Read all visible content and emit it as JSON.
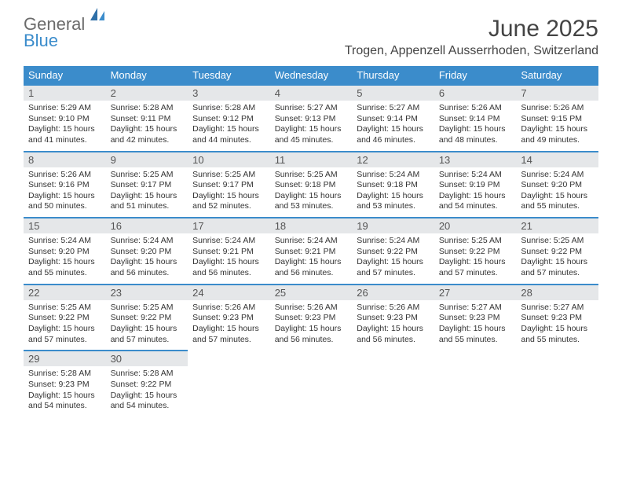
{
  "logo": {
    "word1": "General",
    "word2": "Blue",
    "color_general": "#6b6b6b",
    "color_blue": "#3b8ccb"
  },
  "header": {
    "title": "June 2025",
    "location": "Trogen, Appenzell Ausserrhoden, Switzerland",
    "title_fontsize": 30,
    "location_fontsize": 16
  },
  "calendar": {
    "weekday_header_bg": "#3b8ccb",
    "weekday_header_color": "#ffffff",
    "daynum_bg": "#e5e7e9",
    "daynum_border_top": "#3b8ccb",
    "weekdays": [
      "Sunday",
      "Monday",
      "Tuesday",
      "Wednesday",
      "Thursday",
      "Friday",
      "Saturday"
    ],
    "days": [
      {
        "n": "1",
        "sunrise": "Sunrise: 5:29 AM",
        "sunset": "Sunset: 9:10 PM",
        "daylight": "Daylight: 15 hours and 41 minutes."
      },
      {
        "n": "2",
        "sunrise": "Sunrise: 5:28 AM",
        "sunset": "Sunset: 9:11 PM",
        "daylight": "Daylight: 15 hours and 42 minutes."
      },
      {
        "n": "3",
        "sunrise": "Sunrise: 5:28 AM",
        "sunset": "Sunset: 9:12 PM",
        "daylight": "Daylight: 15 hours and 44 minutes."
      },
      {
        "n": "4",
        "sunrise": "Sunrise: 5:27 AM",
        "sunset": "Sunset: 9:13 PM",
        "daylight": "Daylight: 15 hours and 45 minutes."
      },
      {
        "n": "5",
        "sunrise": "Sunrise: 5:27 AM",
        "sunset": "Sunset: 9:14 PM",
        "daylight": "Daylight: 15 hours and 46 minutes."
      },
      {
        "n": "6",
        "sunrise": "Sunrise: 5:26 AM",
        "sunset": "Sunset: 9:14 PM",
        "daylight": "Daylight: 15 hours and 48 minutes."
      },
      {
        "n": "7",
        "sunrise": "Sunrise: 5:26 AM",
        "sunset": "Sunset: 9:15 PM",
        "daylight": "Daylight: 15 hours and 49 minutes."
      },
      {
        "n": "8",
        "sunrise": "Sunrise: 5:26 AM",
        "sunset": "Sunset: 9:16 PM",
        "daylight": "Daylight: 15 hours and 50 minutes."
      },
      {
        "n": "9",
        "sunrise": "Sunrise: 5:25 AM",
        "sunset": "Sunset: 9:17 PM",
        "daylight": "Daylight: 15 hours and 51 minutes."
      },
      {
        "n": "10",
        "sunrise": "Sunrise: 5:25 AM",
        "sunset": "Sunset: 9:17 PM",
        "daylight": "Daylight: 15 hours and 52 minutes."
      },
      {
        "n": "11",
        "sunrise": "Sunrise: 5:25 AM",
        "sunset": "Sunset: 9:18 PM",
        "daylight": "Daylight: 15 hours and 53 minutes."
      },
      {
        "n": "12",
        "sunrise": "Sunrise: 5:24 AM",
        "sunset": "Sunset: 9:18 PM",
        "daylight": "Daylight: 15 hours and 53 minutes."
      },
      {
        "n": "13",
        "sunrise": "Sunrise: 5:24 AM",
        "sunset": "Sunset: 9:19 PM",
        "daylight": "Daylight: 15 hours and 54 minutes."
      },
      {
        "n": "14",
        "sunrise": "Sunrise: 5:24 AM",
        "sunset": "Sunset: 9:20 PM",
        "daylight": "Daylight: 15 hours and 55 minutes."
      },
      {
        "n": "15",
        "sunrise": "Sunrise: 5:24 AM",
        "sunset": "Sunset: 9:20 PM",
        "daylight": "Daylight: 15 hours and 55 minutes."
      },
      {
        "n": "16",
        "sunrise": "Sunrise: 5:24 AM",
        "sunset": "Sunset: 9:20 PM",
        "daylight": "Daylight: 15 hours and 56 minutes."
      },
      {
        "n": "17",
        "sunrise": "Sunrise: 5:24 AM",
        "sunset": "Sunset: 9:21 PM",
        "daylight": "Daylight: 15 hours and 56 minutes."
      },
      {
        "n": "18",
        "sunrise": "Sunrise: 5:24 AM",
        "sunset": "Sunset: 9:21 PM",
        "daylight": "Daylight: 15 hours and 56 minutes."
      },
      {
        "n": "19",
        "sunrise": "Sunrise: 5:24 AM",
        "sunset": "Sunset: 9:22 PM",
        "daylight": "Daylight: 15 hours and 57 minutes."
      },
      {
        "n": "20",
        "sunrise": "Sunrise: 5:25 AM",
        "sunset": "Sunset: 9:22 PM",
        "daylight": "Daylight: 15 hours and 57 minutes."
      },
      {
        "n": "21",
        "sunrise": "Sunrise: 5:25 AM",
        "sunset": "Sunset: 9:22 PM",
        "daylight": "Daylight: 15 hours and 57 minutes."
      },
      {
        "n": "22",
        "sunrise": "Sunrise: 5:25 AM",
        "sunset": "Sunset: 9:22 PM",
        "daylight": "Daylight: 15 hours and 57 minutes."
      },
      {
        "n": "23",
        "sunrise": "Sunrise: 5:25 AM",
        "sunset": "Sunset: 9:22 PM",
        "daylight": "Daylight: 15 hours and 57 minutes."
      },
      {
        "n": "24",
        "sunrise": "Sunrise: 5:26 AM",
        "sunset": "Sunset: 9:23 PM",
        "daylight": "Daylight: 15 hours and 57 minutes."
      },
      {
        "n": "25",
        "sunrise": "Sunrise: 5:26 AM",
        "sunset": "Sunset: 9:23 PM",
        "daylight": "Daylight: 15 hours and 56 minutes."
      },
      {
        "n": "26",
        "sunrise": "Sunrise: 5:26 AM",
        "sunset": "Sunset: 9:23 PM",
        "daylight": "Daylight: 15 hours and 56 minutes."
      },
      {
        "n": "27",
        "sunrise": "Sunrise: 5:27 AM",
        "sunset": "Sunset: 9:23 PM",
        "daylight": "Daylight: 15 hours and 55 minutes."
      },
      {
        "n": "28",
        "sunrise": "Sunrise: 5:27 AM",
        "sunset": "Sunset: 9:23 PM",
        "daylight": "Daylight: 15 hours and 55 minutes."
      },
      {
        "n": "29",
        "sunrise": "Sunrise: 5:28 AM",
        "sunset": "Sunset: 9:23 PM",
        "daylight": "Daylight: 15 hours and 54 minutes."
      },
      {
        "n": "30",
        "sunrise": "Sunrise: 5:28 AM",
        "sunset": "Sunset: 9:22 PM",
        "daylight": "Daylight: 15 hours and 54 minutes."
      }
    ],
    "start_weekday": 0,
    "total_cells": 35
  }
}
